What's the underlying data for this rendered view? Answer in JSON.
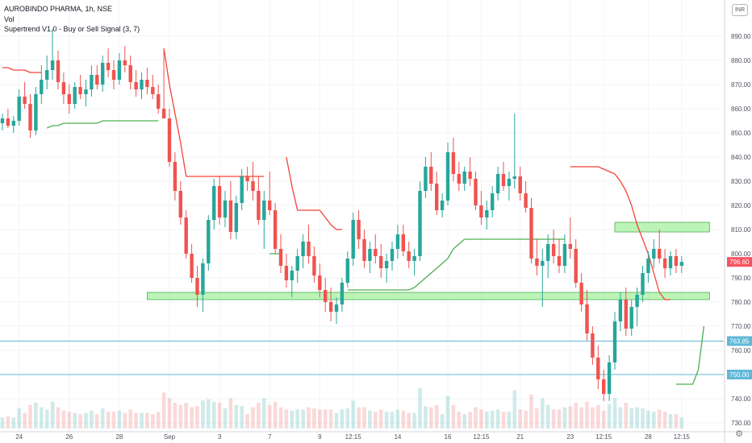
{
  "header": {
    "symbol_line": "AUROBINDO PHARMA, 1h, NSE",
    "volume_label": "Vol",
    "indicator_label": "Supertrend V1.0 - Buy or Sell Signal (3, 7)"
  },
  "currency_button": "INR",
  "settings_icon": "gear-icon",
  "colors": {
    "up": "#26a69a",
    "down": "#ef5350",
    "supertrend_up": "#4caf50",
    "supertrend_down": "#f44336",
    "zone_fill": "#a5f0a0",
    "zone_stroke": "#4caf50",
    "hline": "#5fb8d6",
    "last_price_bg": "#f7525f",
    "axis_text": "#50535e",
    "grid": "#f0f3fa"
  },
  "chart_data": {
    "type": "candlestick",
    "symbol": "AUROBINDO PHARMA",
    "interval": "1h",
    "exchange": "NSE",
    "y_axis": {
      "range": [
        728,
        900
      ],
      "ticks": [
        730,
        740,
        750,
        760,
        770,
        780,
        790,
        800,
        810,
        820,
        830,
        840,
        850,
        860,
        870,
        880,
        890
      ]
    },
    "x_axis": {
      "labels": [
        "24",
        "26",
        "28",
        "Sep",
        "3",
        "7",
        "9",
        "12:15",
        "14",
        "16",
        "12:15",
        "21",
        "23",
        "12:15",
        "28",
        "12:15"
      ],
      "label_bars": [
        3,
        12,
        21,
        30,
        39,
        48,
        57,
        63,
        71,
        80,
        86,
        93,
        102,
        108,
        116,
        122
      ]
    },
    "ohlc": [
      [
        854,
        858,
        851,
        856
      ],
      [
        856,
        860,
        852,
        853
      ],
      [
        853,
        857,
        850,
        855
      ],
      [
        855,
        868,
        853,
        865
      ],
      [
        865,
        871,
        860,
        862
      ],
      [
        862,
        866,
        848,
        851
      ],
      [
        851,
        869,
        849,
        866
      ],
      [
        866,
        878,
        862,
        872
      ],
      [
        872,
        882,
        868,
        876
      ],
      [
        876,
        893,
        872,
        880
      ],
      [
        880,
        884,
        868,
        871
      ],
      [
        871,
        875,
        862,
        866
      ],
      [
        866,
        870,
        858,
        862
      ],
      [
        862,
        871,
        860,
        869
      ],
      [
        869,
        874,
        864,
        866
      ],
      [
        866,
        872,
        861,
        868
      ],
      [
        868,
        878,
        865,
        874
      ],
      [
        874,
        878,
        868,
        870
      ],
      [
        870,
        882,
        867,
        879
      ],
      [
        879,
        885,
        873,
        876
      ],
      [
        876,
        880,
        868,
        872
      ],
      [
        872,
        883,
        870,
        880
      ],
      [
        880,
        886,
        875,
        878
      ],
      [
        878,
        882,
        868,
        871
      ],
      [
        871,
        876,
        865,
        868
      ],
      [
        868,
        875,
        864,
        872
      ],
      [
        872,
        877,
        866,
        869
      ],
      [
        869,
        874,
        864,
        866
      ],
      [
        866,
        870,
        858,
        860
      ],
      [
        860,
        885,
        856,
        856
      ],
      [
        856,
        860,
        836,
        838
      ],
      [
        838,
        842,
        822,
        826
      ],
      [
        826,
        830,
        812,
        815
      ],
      [
        815,
        818,
        798,
        800
      ],
      [
        800,
        804,
        788,
        790
      ],
      [
        790,
        795,
        778,
        783
      ],
      [
        783,
        798,
        776,
        796
      ],
      [
        796,
        816,
        793,
        814
      ],
      [
        814,
        831,
        810,
        828
      ],
      [
        828,
        832,
        812,
        815
      ],
      [
        815,
        826,
        811,
        822
      ],
      [
        822,
        830,
        806,
        809
      ],
      [
        809,
        824,
        806,
        821
      ],
      [
        821,
        835,
        818,
        832
      ],
      [
        832,
        836,
        826,
        830
      ],
      [
        830,
        838,
        822,
        826
      ],
      [
        826,
        832,
        812,
        814
      ],
      [
        814,
        826,
        802,
        822
      ],
      [
        822,
        834,
        816,
        818
      ],
      [
        818,
        821,
        800,
        802
      ],
      [
        802,
        808,
        792,
        795
      ],
      [
        795,
        800,
        786,
        789
      ],
      [
        789,
        795,
        782,
        793
      ],
      [
        793,
        802,
        788,
        799
      ],
      [
        799,
        808,
        794,
        805
      ],
      [
        805,
        812,
        796,
        799
      ],
      [
        799,
        803,
        788,
        791
      ],
      [
        791,
        796,
        782,
        785
      ],
      [
        785,
        790,
        776,
        780
      ],
      [
        780,
        786,
        772,
        776
      ],
      [
        776,
        782,
        771,
        779
      ],
      [
        779,
        790,
        776,
        788
      ],
      [
        788,
        801,
        786,
        798
      ],
      [
        798,
        817,
        795,
        814
      ],
      [
        814,
        818,
        802,
        806
      ],
      [
        806,
        810,
        794,
        797
      ],
      [
        797,
        805,
        792,
        802
      ],
      [
        802,
        808,
        796,
        799
      ],
      [
        799,
        804,
        790,
        794
      ],
      [
        794,
        800,
        788,
        797
      ],
      [
        797,
        805,
        793,
        802
      ],
      [
        802,
        812,
        798,
        808
      ],
      [
        808,
        812,
        799,
        801
      ],
      [
        801,
        805,
        794,
        797
      ],
      [
        797,
        802,
        791,
        799
      ],
      [
        799,
        830,
        797,
        826
      ],
      [
        826,
        840,
        823,
        836
      ],
      [
        836,
        842,
        826,
        829
      ],
      [
        829,
        834,
        816,
        818
      ],
      [
        818,
        825,
        815,
        822
      ],
      [
        822,
        846,
        820,
        842
      ],
      [
        842,
        848,
        830,
        833
      ],
      [
        833,
        838,
        826,
        829
      ],
      [
        829,
        836,
        826,
        834
      ],
      [
        834,
        840,
        828,
        831
      ],
      [
        831,
        834,
        818,
        820
      ],
      [
        820,
        826,
        812,
        815
      ],
      [
        815,
        822,
        810,
        818
      ],
      [
        818,
        828,
        815,
        825
      ],
      [
        825,
        836,
        822,
        833
      ],
      [
        833,
        838,
        826,
        828
      ],
      [
        828,
        834,
        822,
        831
      ],
      [
        831,
        858,
        827,
        832
      ],
      [
        832,
        836,
        822,
        825
      ],
      [
        825,
        830,
        817,
        819
      ],
      [
        819,
        823,
        796,
        798
      ],
      [
        798,
        806,
        791,
        795
      ],
      [
        795,
        802,
        778,
        797
      ],
      [
        797,
        808,
        790,
        804
      ],
      [
        804,
        810,
        796,
        799
      ],
      [
        799,
        806,
        792,
        795
      ],
      [
        795,
        808,
        792,
        804
      ],
      [
        804,
        815,
        798,
        802
      ],
      [
        802,
        806,
        786,
        788
      ],
      [
        788,
        792,
        776,
        779
      ],
      [
        779,
        785,
        764,
        767
      ],
      [
        767,
        770,
        754,
        757
      ],
      [
        757,
        762,
        744,
        748
      ],
      [
        748,
        752,
        739,
        742
      ],
      [
        742,
        758,
        739,
        755
      ],
      [
        755,
        776,
        752,
        772
      ],
      [
        772,
        784,
        768,
        781
      ],
      [
        781,
        786,
        766,
        769
      ],
      [
        769,
        781,
        766,
        778
      ],
      [
        778,
        786,
        770,
        783
      ],
      [
        783,
        795,
        780,
        792
      ],
      [
        792,
        801,
        788,
        798
      ],
      [
        798,
        806,
        794,
        802
      ],
      [
        802,
        810,
        796,
        798
      ],
      [
        798,
        802,
        790,
        794
      ],
      [
        794,
        801,
        791,
        799
      ],
      [
        799,
        802,
        792,
        795
      ],
      [
        795,
        799,
        792,
        796.6
      ]
    ],
    "supertrend": [
      {
        "direction": "down",
        "from_bar": 0,
        "to_bar": 7,
        "values": [
          877,
          877,
          876,
          876,
          876,
          875,
          875,
          875
        ]
      },
      {
        "direction": "up",
        "from_bar": 8,
        "to_bar": 28,
        "values": [
          852,
          853,
          853,
          854,
          854,
          854,
          854,
          854,
          854,
          854,
          855,
          855,
          855,
          855,
          855,
          855,
          855,
          855,
          855,
          855,
          855
        ]
      },
      {
        "direction": "down",
        "from_bar": 29,
        "to_bar": 47,
        "values": [
          885,
          870,
          858,
          846,
          832,
          832,
          832,
          832,
          832,
          832,
          832,
          832,
          832,
          832,
          832,
          832,
          832,
          832,
          832
        ]
      },
      {
        "direction": "up",
        "from_bar": 48,
        "to_bar": 50,
        "values": [
          800,
          800,
          800
        ]
      },
      {
        "direction": "down",
        "from_bar": 51,
        "to_bar": 61,
        "values": [
          840,
          828,
          818,
          818,
          818,
          818,
          818,
          815,
          812,
          810,
          810
        ]
      },
      {
        "direction": "up",
        "from_bar": 62,
        "to_bar": 101,
        "values": [
          785,
          785,
          785,
          785,
          785,
          785,
          785,
          785,
          785,
          785,
          785,
          785,
          786,
          788,
          790,
          792,
          794,
          796,
          798,
          802,
          804,
          806,
          806,
          806,
          806,
          806,
          806,
          806,
          806,
          806,
          806,
          806,
          806,
          806,
          806,
          806,
          806,
          806,
          806,
          806
        ]
      },
      {
        "direction": "down",
        "from_bar": 102,
        "to_bar": 120,
        "values": [
          836,
          836,
          836,
          836,
          836,
          836,
          835,
          834,
          833,
          830,
          826,
          820,
          812,
          806,
          800,
          792,
          784,
          781,
          781
        ]
      },
      {
        "direction": "up",
        "from_bar": 121,
        "to_bar": 126,
        "values": [
          746,
          746,
          746,
          746,
          752,
          770
        ]
      }
    ],
    "zones": [
      {
        "y_range": [
          781,
          784
        ],
        "from_bar": 26,
        "to_bar": 127
      },
      {
        "y_range": [
          809,
          813
        ],
        "from_bar": 110,
        "to_bar": 127
      }
    ],
    "horizontal_lines": [
      763.85,
      750
    ],
    "price_labels": [
      {
        "text": "796.60",
        "value": 796.6,
        "kind": "last_price"
      },
      {
        "text": "763.85",
        "value": 763.85,
        "kind": "line"
      },
      {
        "text": "750.00",
        "value": 750,
        "kind": "line"
      }
    ]
  }
}
